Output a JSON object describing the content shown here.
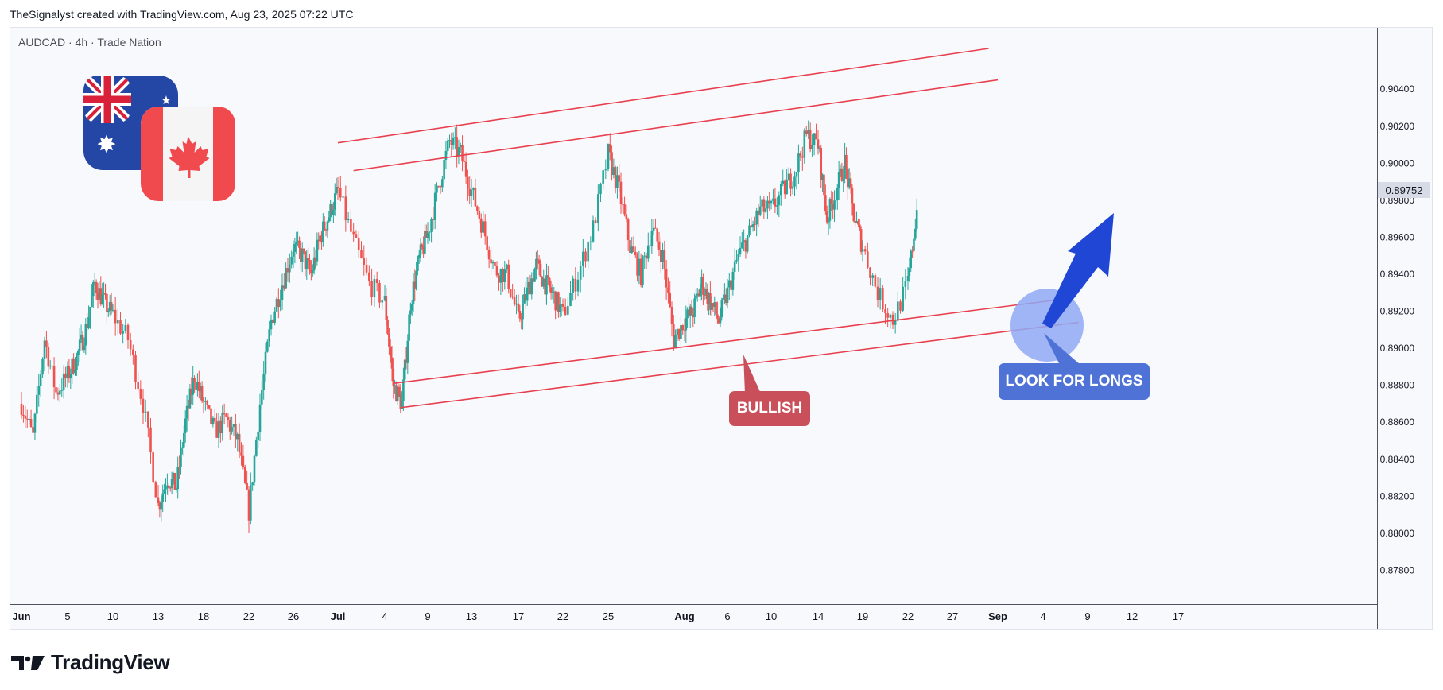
{
  "header": {
    "credit": "TheSignalyst created with TradingView.com, Aug 23, 2025 07:22 UTC"
  },
  "symbol": {
    "label": "AUDCAD · 4h · Trade Nation"
  },
  "footer": {
    "brand": "TradingView"
  },
  "annotations": {
    "bullish": "BULLISH",
    "look_for_longs": "LOOK FOR LONGS"
  },
  "colors": {
    "up": "#26a69a",
    "down": "#ef5350",
    "channel": "#e8404e",
    "arrow": "#1f46d4",
    "highlight": "#8fa9f5"
  },
  "icons": [
    "australia-flag-icon",
    "canada-flag-icon",
    "tradingview-logo-icon"
  ],
  "chart_data": {
    "type": "candlestick",
    "symbol": "AUDCAD",
    "timeframe": "4h",
    "last_price": "0.89752",
    "y_ticks": [
      "0.90400",
      "0.90200",
      "0.90000",
      "0.89800",
      "0.89600",
      "0.89400",
      "0.89200",
      "0.89000",
      "0.88800",
      "0.88600",
      "0.88400",
      "0.88200",
      "0.88000",
      "0.87800"
    ],
    "ylim": [
      0.8766,
      0.9062
    ],
    "x_ticks": [
      "Jun",
      "5",
      "10",
      "13",
      "18",
      "22",
      "26",
      "Jul",
      "4",
      "9",
      "13",
      "17",
      "22",
      "25",
      "Aug",
      "6",
      "10",
      "14",
      "19",
      "22",
      "27",
      "Sep",
      "4",
      "9",
      "12",
      "17"
    ],
    "close_path": [
      [
        "Jun 1",
        0.887
      ],
      [
        "Jun 2",
        0.8852
      ],
      [
        "Jun 3",
        0.8905
      ],
      [
        "Jun 4",
        0.8876
      ],
      [
        "Jun 5",
        0.8885
      ],
      [
        "Jun 6",
        0.8895
      ],
      [
        "Jun 7",
        0.891
      ],
      [
        "Jun 8",
        0.8935
      ],
      [
        "Jun 9",
        0.8925
      ],
      [
        "Jun 10",
        0.8918
      ],
      [
        "Jun 11",
        0.8905
      ],
      [
        "Jun 12",
        0.887
      ],
      [
        "Jun 13",
        0.8815
      ],
      [
        "Jun 14",
        0.883
      ],
      [
        "Jun 15",
        0.8825
      ],
      [
        "Jun 16",
        0.886
      ],
      [
        "Jun 17",
        0.8885
      ],
      [
        "Jun 18",
        0.887
      ],
      [
        "Jun 19",
        0.8855
      ],
      [
        "Jun 20",
        0.8862
      ],
      [
        "Jun 21",
        0.885
      ],
      [
        "Jun 22",
        0.8812
      ],
      [
        "Jun 23",
        0.887
      ],
      [
        "Jun 24",
        0.8915
      ],
      [
        "Jun 25",
        0.8935
      ],
      [
        "Jun 26",
        0.8955
      ],
      [
        "Jun 27",
        0.895
      ],
      [
        "Jun 28",
        0.894
      ],
      [
        "Jun 29",
        0.896
      ],
      [
        "Jun 30",
        0.8972
      ],
      [
        "Jul 1",
        0.8985
      ],
      [
        "Jul 2",
        0.8958
      ],
      [
        "Jul 3",
        0.8935
      ],
      [
        "Jul 4",
        0.8925
      ],
      [
        "Jul 5",
        0.888
      ],
      [
        "Jul 6",
        0.887
      ],
      [
        "Jul 7",
        0.8925
      ],
      [
        "Jul 8",
        0.8948
      ],
      [
        "Jul 9",
        0.8962
      ],
      [
        "Jul 10",
        0.8988
      ],
      [
        "Jul 11",
        0.9012
      ],
      [
        "Jul 12",
        0.9005
      ],
      [
        "Jul 13",
        0.8985
      ],
      [
        "Jul 14",
        0.8965
      ],
      [
        "Jul 15",
        0.8942
      ],
      [
        "Jul 16",
        0.894
      ],
      [
        "Jul 17",
        0.8915
      ],
      [
        "Jul 18",
        0.893
      ],
      [
        "Jul 19",
        0.8945
      ],
      [
        "Jul 20",
        0.8935
      ],
      [
        "Jul 21",
        0.8928
      ],
      [
        "Jul 22",
        0.8918
      ],
      [
        "Jul 23",
        0.894
      ],
      [
        "Jul 24",
        0.8965
      ],
      [
        "Jul 25",
        0.9005
      ],
      [
        "Jul 26",
        0.8985
      ],
      [
        "Jul 27",
        0.8955
      ],
      [
        "Jul 28",
        0.894
      ],
      [
        "Jul 29",
        0.8965
      ],
      [
        "Jul 30",
        0.895
      ],
      [
        "Jul 31",
        0.8905
      ],
      [
        "Aug 1",
        0.8915
      ],
      [
        "Aug 2",
        0.892
      ],
      [
        "Aug 3",
        0.8935
      ],
      [
        "Aug 4",
        0.8925
      ],
      [
        "Aug 5",
        0.8915
      ],
      [
        "Aug 6",
        0.893
      ],
      [
        "Aug 7",
        0.895
      ],
      [
        "Aug 8",
        0.8962
      ],
      [
        "Aug 9",
        0.8975
      ],
      [
        "Aug 10",
        0.8975
      ],
      [
        "Aug 11",
        0.8985
      ],
      [
        "Aug 12",
        0.8995
      ],
      [
        "Aug 13",
        0.9015
      ],
      [
        "Aug 14",
        0.901
      ],
      [
        "Aug 15",
        0.897
      ],
      [
        "Aug 16",
        0.8985
      ],
      [
        "Aug 17",
        0.9
      ],
      [
        "Aug 18",
        0.8972
      ],
      [
        "Aug 19",
        0.8955
      ],
      [
        "Aug 20",
        0.893
      ],
      [
        "Aug 21",
        0.8915
      ],
      [
        "Aug 22",
        0.8935
      ],
      [
        "Aug 23",
        0.8975
      ]
    ],
    "channel_lines": [
      {
        "name": "upper-outer",
        "from": [
          "Jul 1",
          0.9011
        ],
        "to": [
          "Aug 31",
          0.9062
        ]
      },
      {
        "name": "upper-inner",
        "from": [
          "Jul 2",
          0.8996
        ],
        "to": [
          "Sep 1",
          0.9045
        ]
      },
      {
        "name": "lower-inner",
        "from": [
          "Jul 5",
          0.8881
        ],
        "to": [
          "Sep 8",
          0.8927
        ]
      },
      {
        "name": "lower-outer",
        "from": [
          "Jul 6",
          0.8868
        ],
        "to": [
          "Sep 9",
          0.8914
        ]
      }
    ],
    "grid": false
  }
}
